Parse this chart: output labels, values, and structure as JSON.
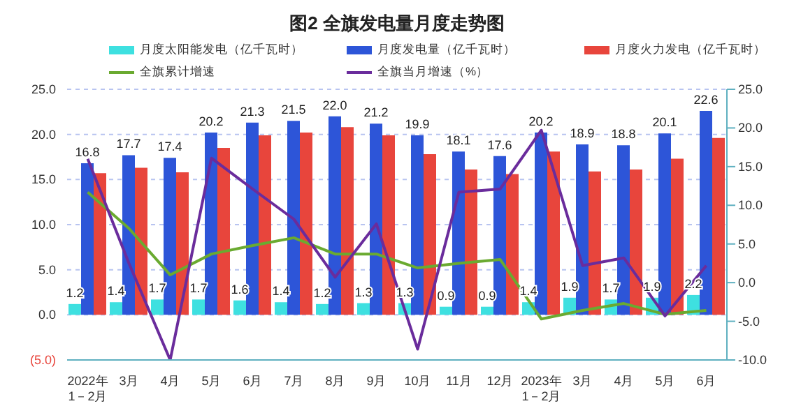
{
  "chart_data": {
    "type": "bar",
    "title": "图2  全旗发电量月度走势图",
    "categories": [
      "2022年\n1－2月",
      "3月",
      "4月",
      "5月",
      "6月",
      "7月",
      "8月",
      "9月",
      "10月",
      "11月",
      "12月",
      "2023年\n1－2月",
      "3月",
      "4月",
      "5月",
      "6月"
    ],
    "series": [
      {
        "name": "月度太阳能发电（亿千瓦时）",
        "color": "#3ee0e0",
        "values": [
          1.2,
          1.4,
          1.7,
          1.7,
          1.6,
          1.4,
          1.2,
          1.3,
          1.3,
          0.9,
          0.9,
          1.4,
          1.9,
          1.7,
          1.9,
          2.2
        ],
        "value_labels": [
          "1.2",
          "1.4",
          "1.7",
          "1.7",
          "1.6",
          "1.4",
          "1.2",
          "1.3",
          "1.3",
          "0.9",
          "0.9",
          "1.4",
          "1.9",
          "1.7",
          "1.9",
          "2.2"
        ]
      },
      {
        "name": "月度发电量（亿千瓦时）",
        "color": "#2d55d8",
        "values": [
          16.8,
          17.7,
          17.4,
          20.2,
          21.3,
          21.5,
          22.0,
          21.2,
          19.9,
          18.1,
          17.6,
          20.2,
          18.9,
          18.8,
          20.1,
          22.6
        ],
        "value_labels": [
          "16.8",
          "17.7",
          "17.4",
          "20.2",
          "21.3",
          "21.5",
          "22.0",
          "21.2",
          "19.9",
          "18.1",
          "17.6",
          "20.2",
          "18.9",
          "18.8",
          "20.1",
          "22.6"
        ]
      },
      {
        "name": "月度火力发电（亿千瓦时）",
        "color": "#e8453c",
        "values": [
          15.7,
          16.3,
          15.8,
          18.5,
          19.9,
          20.2,
          20.8,
          19.9,
          17.8,
          16.1,
          15.6,
          18.1,
          15.9,
          16.1,
          17.3,
          19.6
        ]
      },
      {
        "name": "全旗累计增速",
        "type": "line",
        "axis": "y2",
        "color": "#6aaa30",
        "values": [
          11.7,
          7.0,
          1.0,
          3.7,
          4.8,
          5.8,
          3.7,
          3.7,
          1.9,
          2.5,
          3.0,
          -4.7,
          -3.6,
          -2.7,
          -4.1,
          -3.6
        ]
      },
      {
        "name": "全旗当月增速（%）",
        "type": "line",
        "axis": "y2",
        "color": "#6a2c9c",
        "values": [
          16.0,
          2.5,
          -10.0,
          16.1,
          12.1,
          8.2,
          0.7,
          7.6,
          -8.6,
          11.7,
          12.1,
          19.7,
          2.2,
          3.2,
          -4.3,
          2.2
        ]
      }
    ],
    "ylim": [
      -5,
      25
    ],
    "yticks": [
      {
        "value": -5,
        "label": "(5.0)"
      },
      {
        "value": 0,
        "label": "0.0"
      },
      {
        "value": 5,
        "label": "5.0"
      },
      {
        "value": 10,
        "label": "10.0"
      },
      {
        "value": 15,
        "label": "15.0"
      },
      {
        "value": 20,
        "label": "20.0"
      },
      {
        "value": 25,
        "label": "25.0"
      }
    ],
    "y2lim": [
      -10,
      25
    ],
    "y2ticks": [
      {
        "value": -10,
        "label": "-10.0"
      },
      {
        "value": -5,
        "label": "-5.0"
      },
      {
        "value": 0,
        "label": "0.0"
      },
      {
        "value": 5,
        "label": "5.0"
      },
      {
        "value": 10,
        "label": "10.0"
      },
      {
        "value": 15,
        "label": "15.0"
      },
      {
        "value": 20,
        "label": "20.0"
      },
      {
        "value": 25,
        "label": "25.0"
      }
    ],
    "grid": "y",
    "legend": "top",
    "marker": "none",
    "line_style": "solid"
  }
}
